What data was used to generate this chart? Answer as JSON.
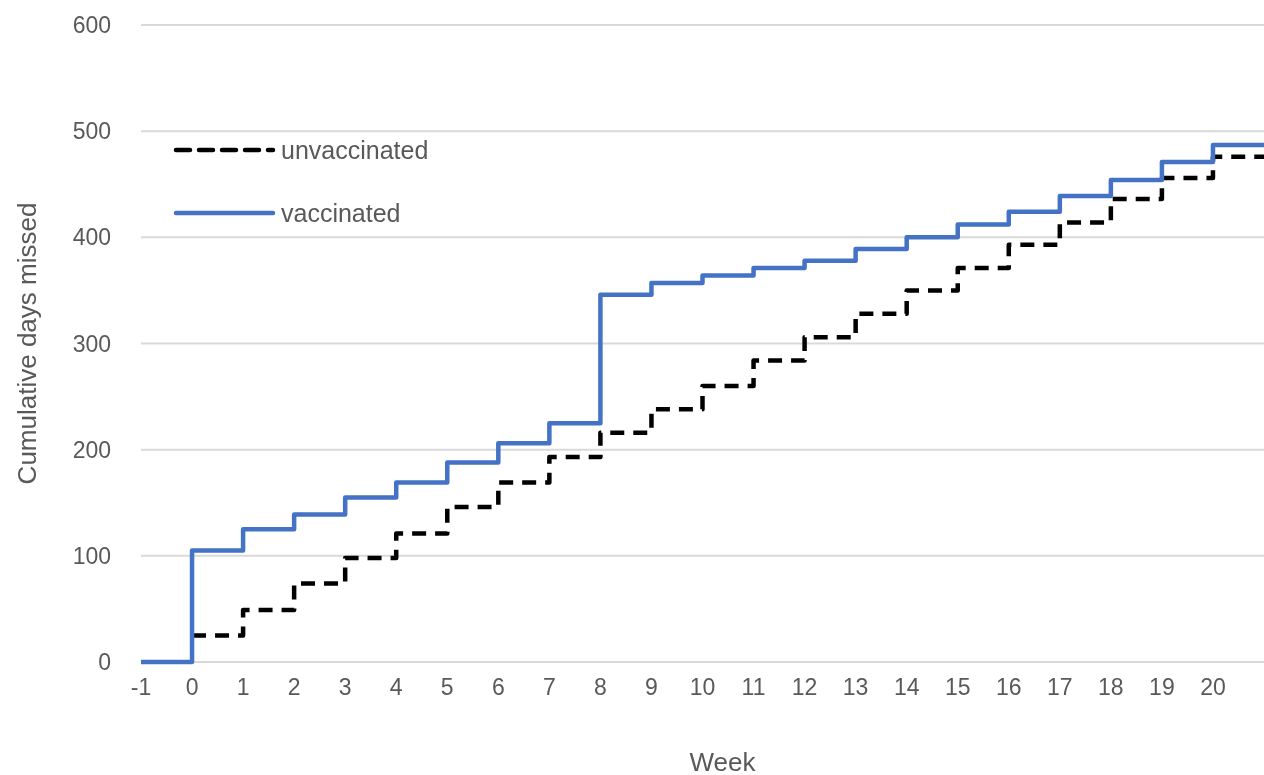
{
  "chart_data": {
    "type": "step",
    "xlabel": "Week",
    "ylabel": "Cumulative days missed",
    "x": [
      -1,
      0,
      1,
      2,
      3,
      4,
      5,
      6,
      7,
      8,
      9,
      10,
      11,
      12,
      13,
      14,
      15,
      16,
      17,
      18,
      19,
      20,
      21
    ],
    "xlim": [
      -1,
      21
    ],
    "xticks": [
      -1,
      0,
      1,
      2,
      3,
      4,
      5,
      6,
      7,
      8,
      9,
      10,
      11,
      12,
      13,
      14,
      15,
      16,
      17,
      18,
      19,
      20
    ],
    "ylim": [
      0,
      600
    ],
    "yticks": [
      0,
      100,
      200,
      300,
      400,
      500,
      600
    ],
    "grid": "y",
    "legend": "top left",
    "series": [
      {
        "name": "unvaccinated",
        "color": "#000000",
        "line_style": "dashed",
        "values": [
          null,
          25,
          49,
          74,
          98,
          121,
          146,
          169,
          193,
          216,
          238,
          260,
          284,
          306,
          328,
          350,
          371,
          393,
          414,
          436,
          456,
          476,
          476
        ]
      },
      {
        "name": "vaccinated",
        "color": "#4472c4",
        "line_style": "solid",
        "values": [
          0,
          105,
          125,
          139,
          155,
          169,
          188,
          206,
          225,
          346,
          357,
          364,
          371,
          378,
          389,
          400,
          412,
          424,
          439,
          454,
          471,
          487,
          487
        ]
      }
    ]
  }
}
